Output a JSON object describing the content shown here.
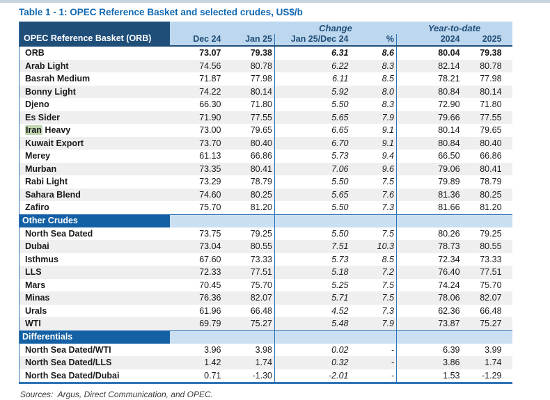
{
  "page": {
    "title": "Table 1 - 1: OPEC Reference Basket and selected crudes, US$/b",
    "sources": "Sources:  Argus, Direct Communication, and OPEC."
  },
  "colors": {
    "title_blue": "#1068b2",
    "header_dark": "#1f4e79",
    "header_light": "#bdd7ee",
    "section_bar": "#1460a4",
    "section_band": "#cbdff2",
    "divider_blue": "#2e75b6",
    "stripe_gray": "#efefef",
    "highlight_green": "#c3d6b2",
    "top_strip": "#c9d4e0"
  },
  "table": {
    "group_headers": {
      "change": "Change",
      "ytd": "Year-to-date"
    },
    "columns": [
      "OPEC Reference Basket (ORB)",
      "Dec 24",
      "Jan 25",
      "Jan 25/Dec 24",
      "%",
      "2024",
      "2025"
    ],
    "sections": [
      {
        "header": null,
        "rows": [
          {
            "cells": [
              "ORB",
              "73.07",
              "79.38",
              "6.31",
              "8.6",
              "80.04",
              "79.38"
            ],
            "bold": true
          },
          {
            "cells": [
              "Arab Light",
              "74.56",
              "80.78",
              "6.22",
              "8.3",
              "82.14",
              "80.78"
            ]
          },
          {
            "cells": [
              "Basrah Medium",
              "71.87",
              "77.98",
              "6.11",
              "8.5",
              "78.21",
              "77.98"
            ]
          },
          {
            "cells": [
              "Bonny Light",
              "74.22",
              "80.14",
              "5.92",
              "8.0",
              "80.84",
              "80.14"
            ]
          },
          {
            "cells": [
              "Djeno",
              "66.30",
              "71.80",
              "5.50",
              "8.3",
              "72.90",
              "71.80"
            ]
          },
          {
            "cells": [
              "Es Sider",
              "71.90",
              "77.55",
              "5.65",
              "7.9",
              "79.66",
              "77.55"
            ]
          },
          {
            "cells": [
              "Iran Heavy",
              "73.00",
              "79.65",
              "6.65",
              "9.1",
              "80.14",
              "79.65"
            ],
            "highlight": "Iran"
          },
          {
            "cells": [
              "Kuwait Export",
              "73.70",
              "80.40",
              "6.70",
              "9.1",
              "80.84",
              "80.40"
            ]
          },
          {
            "cells": [
              "Merey",
              "61.13",
              "66.86",
              "5.73",
              "9.4",
              "66.50",
              "66.86"
            ]
          },
          {
            "cells": [
              "Murban",
              "73.35",
              "80.41",
              "7.06",
              "9.6",
              "79.06",
              "80.41"
            ]
          },
          {
            "cells": [
              "Rabi Light",
              "73.29",
              "78.79",
              "5.50",
              "7.5",
              "79.89",
              "78.79"
            ]
          },
          {
            "cells": [
              "Sahara Blend",
              "74.60",
              "80.25",
              "5.65",
              "7.6",
              "81.36",
              "80.25"
            ]
          },
          {
            "cells": [
              "Zafiro",
              "75.70",
              "81.20",
              "5.50",
              "7.3",
              "81.66",
              "81.20"
            ]
          }
        ]
      },
      {
        "header": "Other Crudes",
        "rows": [
          {
            "cells": [
              "North Sea Dated",
              "73.75",
              "79.25",
              "5.50",
              "7.5",
              "80.26",
              "79.25"
            ]
          },
          {
            "cells": [
              "Dubai",
              "73.04",
              "80.55",
              "7.51",
              "10.3",
              "78.73",
              "80.55"
            ]
          },
          {
            "cells": [
              "Isthmus",
              "67.60",
              "73.33",
              "5.73",
              "8.5",
              "72.34",
              "73.33"
            ]
          },
          {
            "cells": [
              "LLS",
              "72.33",
              "77.51",
              "5.18",
              "7.2",
              "76.40",
              "77.51"
            ]
          },
          {
            "cells": [
              "Mars",
              "70.45",
              "75.70",
              "5.25",
              "7.5",
              "74.24",
              "75.70"
            ]
          },
          {
            "cells": [
              "Minas",
              "76.36",
              "82.07",
              "5.71",
              "7.5",
              "78.06",
              "82.07"
            ]
          },
          {
            "cells": [
              "Urals",
              "61.96",
              "66.48",
              "4.52",
              "7.3",
              "62.36",
              "66.48"
            ]
          },
          {
            "cells": [
              "WTI",
              "69.79",
              "75.27",
              "5.48",
              "7.9",
              "73.87",
              "75.27"
            ]
          }
        ]
      },
      {
        "header": "Differentials",
        "rows": [
          {
            "cells": [
              "North Sea Dated/WTI",
              "3.96",
              "3.98",
              "0.02",
              "-",
              "6.39",
              "3.99"
            ]
          },
          {
            "cells": [
              "North Sea Dated/LLS",
              "1.42",
              "1.74",
              "0.32",
              "-",
              "3.86",
              "1.74"
            ]
          },
          {
            "cells": [
              "North Sea Dated/Dubai",
              "0.71",
              "-1.30",
              "-2.01",
              "-",
              "1.53",
              "-1.29"
            ]
          }
        ]
      }
    ]
  }
}
